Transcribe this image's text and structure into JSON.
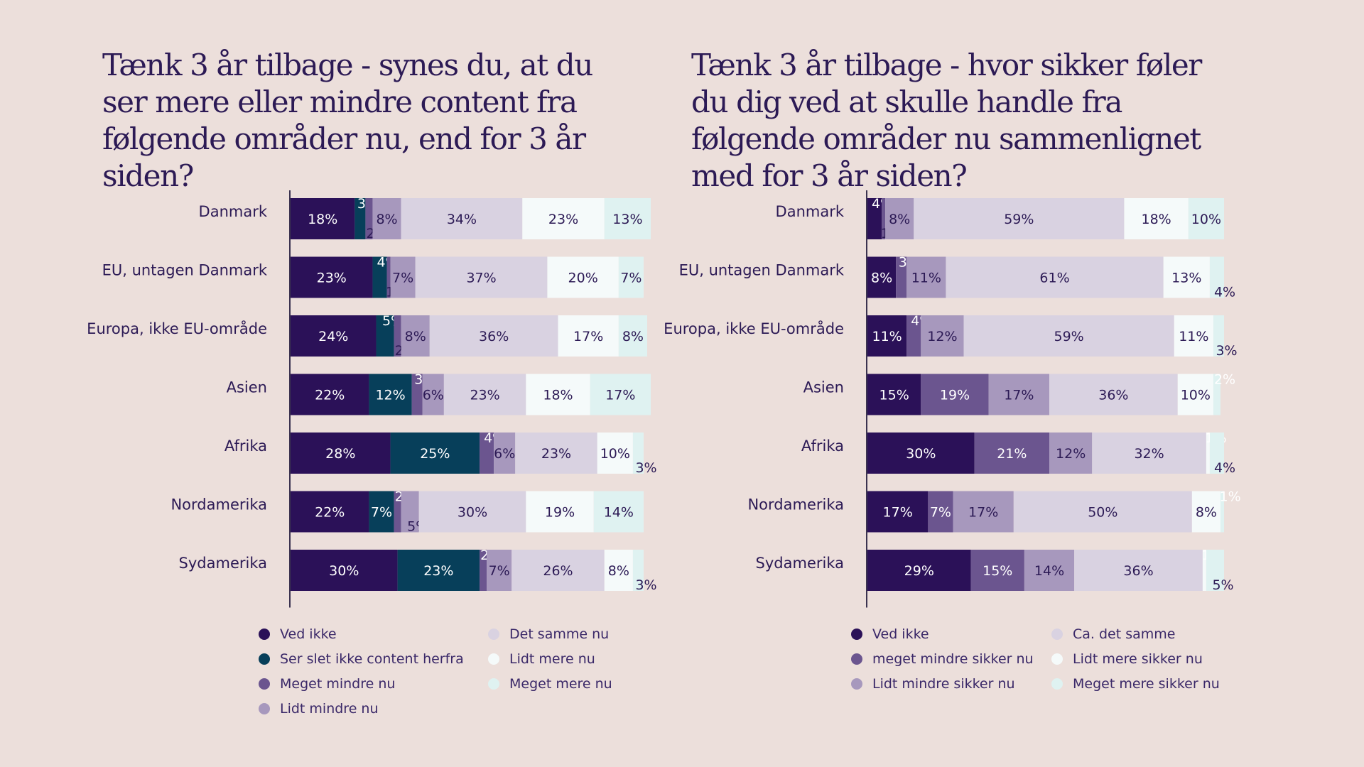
{
  "colors": {
    "background": "#ecdfdb",
    "text": "#2c1a55"
  },
  "charts": [
    {
      "id": "left",
      "title": "Tænk 3 år tilbage - synes du, at du ser mere eller mindre content fra følgende områder nu, end for 3 år siden?",
      "legend": [
        {
          "label": "Ved ikke",
          "color": "#2b1158"
        },
        {
          "label": "Ser slet ikke content herfra",
          "color": "#073f5a"
        },
        {
          "label": "Meget mindre nu",
          "color": "#6b558f"
        },
        {
          "label": "Lidt mindre nu",
          "color": "#a798bd"
        },
        {
          "label": "Det samme nu",
          "color": "#d9d2e1"
        },
        {
          "label": "Lidt mere nu",
          "color": "#f5fafa"
        },
        {
          "label": "Meget mere nu",
          "color": "#dff2f1"
        }
      ]
    },
    {
      "id": "right",
      "title": "Tænk 3 år tilbage - hvor sikker føler du dig ved at skulle handle fra følgende områder nu sammenlignet med for 3 år siden?",
      "legend": [
        {
          "label": "Ved ikke",
          "color": "#2b1158"
        },
        {
          "label": "meget mindre sikker nu",
          "color": "#6b558f"
        },
        {
          "label": "Lidt mindre sikker nu",
          "color": "#a798bd"
        },
        {
          "label": "Ca. det samme",
          "color": "#d9d2e1"
        },
        {
          "label": "Lidt mere sikker nu",
          "color": "#f5fafa"
        },
        {
          "label": "Meget mere sikker nu",
          "color": "#dff2f1"
        }
      ]
    }
  ],
  "chart_data": [
    {
      "type": "bar",
      "orientation": "horizontal",
      "stacked": true,
      "title": "Tænk 3 år tilbage - synes du, at du ser mere eller mindre content fra følgende områder nu, end for 3 år siden?",
      "categories": [
        "Danmark",
        "EU, untagen Danmark",
        "Europa, ikke EU-område",
        "Asien",
        "Afrika",
        "Nordamerika",
        "Sydamerika"
      ],
      "value_unit": "%",
      "legend_position": "bottom",
      "series": [
        {
          "name": "Ved ikke",
          "color": "#2b1158",
          "values": [
            18,
            23,
            24,
            22,
            28,
            22,
            30
          ]
        },
        {
          "name": "Ser slet ikke content herfra",
          "color": "#073f5a",
          "values": [
            3,
            4,
            5,
            12,
            25,
            7,
            23
          ]
        },
        {
          "name": "Meget mindre nu",
          "color": "#6b558f",
          "values": [
            2,
            1,
            2,
            3,
            4,
            2,
            2
          ]
        },
        {
          "name": "Lidt mindre nu",
          "color": "#a798bd",
          "values": [
            8,
            7,
            8,
            6,
            6,
            5,
            7
          ]
        },
        {
          "name": "Det samme nu",
          "color": "#d9d2e1",
          "values": [
            34,
            37,
            36,
            23,
            23,
            30,
            26
          ]
        },
        {
          "name": "Lidt mere nu",
          "color": "#f5fafa",
          "values": [
            23,
            20,
            17,
            18,
            10,
            19,
            8
          ]
        },
        {
          "name": "Meget mere nu",
          "color": "#dff2f1",
          "values": [
            13,
            7,
            8,
            17,
            3,
            14,
            3
          ]
        }
      ]
    },
    {
      "type": "bar",
      "orientation": "horizontal",
      "stacked": true,
      "title": "Tænk 3 år tilbage - hvor sikker føler du dig ved at skulle handle fra følgende områder nu sammenlignet med for 3 år siden?",
      "categories": [
        "Danmark",
        "EU, untagen Danmark",
        "Europa, ikke EU-område",
        "Asien",
        "Afrika",
        "Nordamerika",
        "Sydamerika"
      ],
      "value_unit": "%",
      "legend_position": "bottom",
      "series": [
        {
          "name": "Ved ikke",
          "color": "#2b1158",
          "values": [
            4,
            8,
            11,
            15,
            30,
            17,
            29
          ]
        },
        {
          "name": "meget mindre sikker nu",
          "color": "#6b558f",
          "values": [
            1,
            3,
            4,
            19,
            21,
            7,
            15
          ]
        },
        {
          "name": "Lidt mindre sikker nu",
          "color": "#a798bd",
          "values": [
            8,
            11,
            12,
            17,
            12,
            17,
            14
          ]
        },
        {
          "name": "Ca. det samme",
          "color": "#d9d2e1",
          "values": [
            59,
            61,
            59,
            36,
            32,
            50,
            36
          ]
        },
        {
          "name": "Lidt mere sikker nu",
          "color": "#f5fafa",
          "values": [
            18,
            13,
            11,
            10,
            1,
            8,
            1
          ]
        },
        {
          "name": "Meget mere sikker nu",
          "color": "#dff2f1",
          "values": [
            10,
            4,
            3,
            2,
            4,
            1,
            5
          ]
        }
      ]
    }
  ]
}
